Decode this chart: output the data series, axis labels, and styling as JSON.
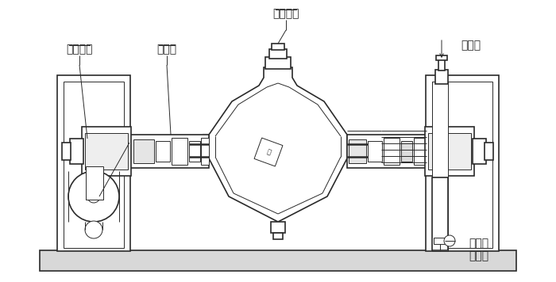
{
  "bg_color": "#ffffff",
  "line_color": "#2a2a2a",
  "watermark_color": "#cccccc",
  "labels": {
    "lbl_left": "旋转接头",
    "lbl_center": "旋转接头",
    "lbl_seal": "密封座",
    "lbl_heat": "进热源",
    "lbl_cond1": "冷凝器",
    "lbl_cond2": "或回流"
  },
  "label_fontsize": 10,
  "figsize": [
    7.0,
    3.56
  ],
  "dpi": 100
}
